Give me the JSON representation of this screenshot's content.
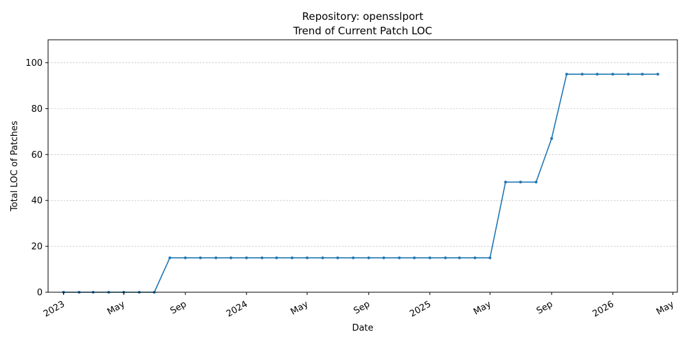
{
  "chart_data": {
    "type": "line",
    "title": "Repository: opensslport",
    "subtitle": "Trend of Current Patch LOC",
    "xlabel": "Date",
    "ylabel": "Total LOC of Patches",
    "ylim": [
      0,
      110
    ],
    "xlim": [
      "2022-12-01",
      "2026-05-10"
    ],
    "grid": "y-dashed",
    "color": "#1f77b4",
    "y_ticks": [
      0,
      20,
      40,
      60,
      80,
      100
    ],
    "x_ticks": [
      {
        "date": "2023-01-01",
        "label": "2023"
      },
      {
        "date": "2023-05-01",
        "label": "May"
      },
      {
        "date": "2023-09-01",
        "label": "Sep"
      },
      {
        "date": "2024-01-01",
        "label": "2024"
      },
      {
        "date": "2024-05-01",
        "label": "May"
      },
      {
        "date": "2024-09-01",
        "label": "Sep"
      },
      {
        "date": "2025-01-01",
        "label": "2025"
      },
      {
        "date": "2025-05-01",
        "label": "May"
      },
      {
        "date": "2025-09-01",
        "label": "Sep"
      },
      {
        "date": "2026-01-01",
        "label": "2026"
      },
      {
        "date": "2026-05-01",
        "label": "May"
      }
    ],
    "series": [
      {
        "x": [
          "2023-01-01",
          "2023-02-01",
          "2023-03-01",
          "2023-04-01",
          "2023-05-01",
          "2023-06-01",
          "2023-07-01",
          "2023-08-01",
          "2023-09-01",
          "2023-10-01",
          "2023-11-01",
          "2023-12-01",
          "2024-01-01",
          "2024-02-01",
          "2024-03-01",
          "2024-04-01",
          "2024-05-01",
          "2024-06-01",
          "2024-07-01",
          "2024-08-01",
          "2024-09-01",
          "2024-10-01",
          "2024-11-01",
          "2024-12-01",
          "2025-01-01",
          "2025-02-01",
          "2025-03-01",
          "2025-04-01",
          "2025-05-01",
          "2025-06-01",
          "2025-07-01",
          "2025-08-01",
          "2025-09-01",
          "2025-10-01",
          "2025-11-01",
          "2025-12-01",
          "2026-01-01",
          "2026-02-01",
          "2026-03-01",
          "2026-04-01"
        ],
        "values": [
          0,
          0,
          0,
          0,
          0,
          0,
          0,
          15,
          15,
          15,
          15,
          15,
          15,
          15,
          15,
          15,
          15,
          15,
          15,
          15,
          15,
          15,
          15,
          15,
          15,
          15,
          15,
          15,
          15,
          48,
          48,
          48,
          67,
          95,
          95,
          95,
          95,
          95,
          95,
          95
        ]
      }
    ]
  }
}
